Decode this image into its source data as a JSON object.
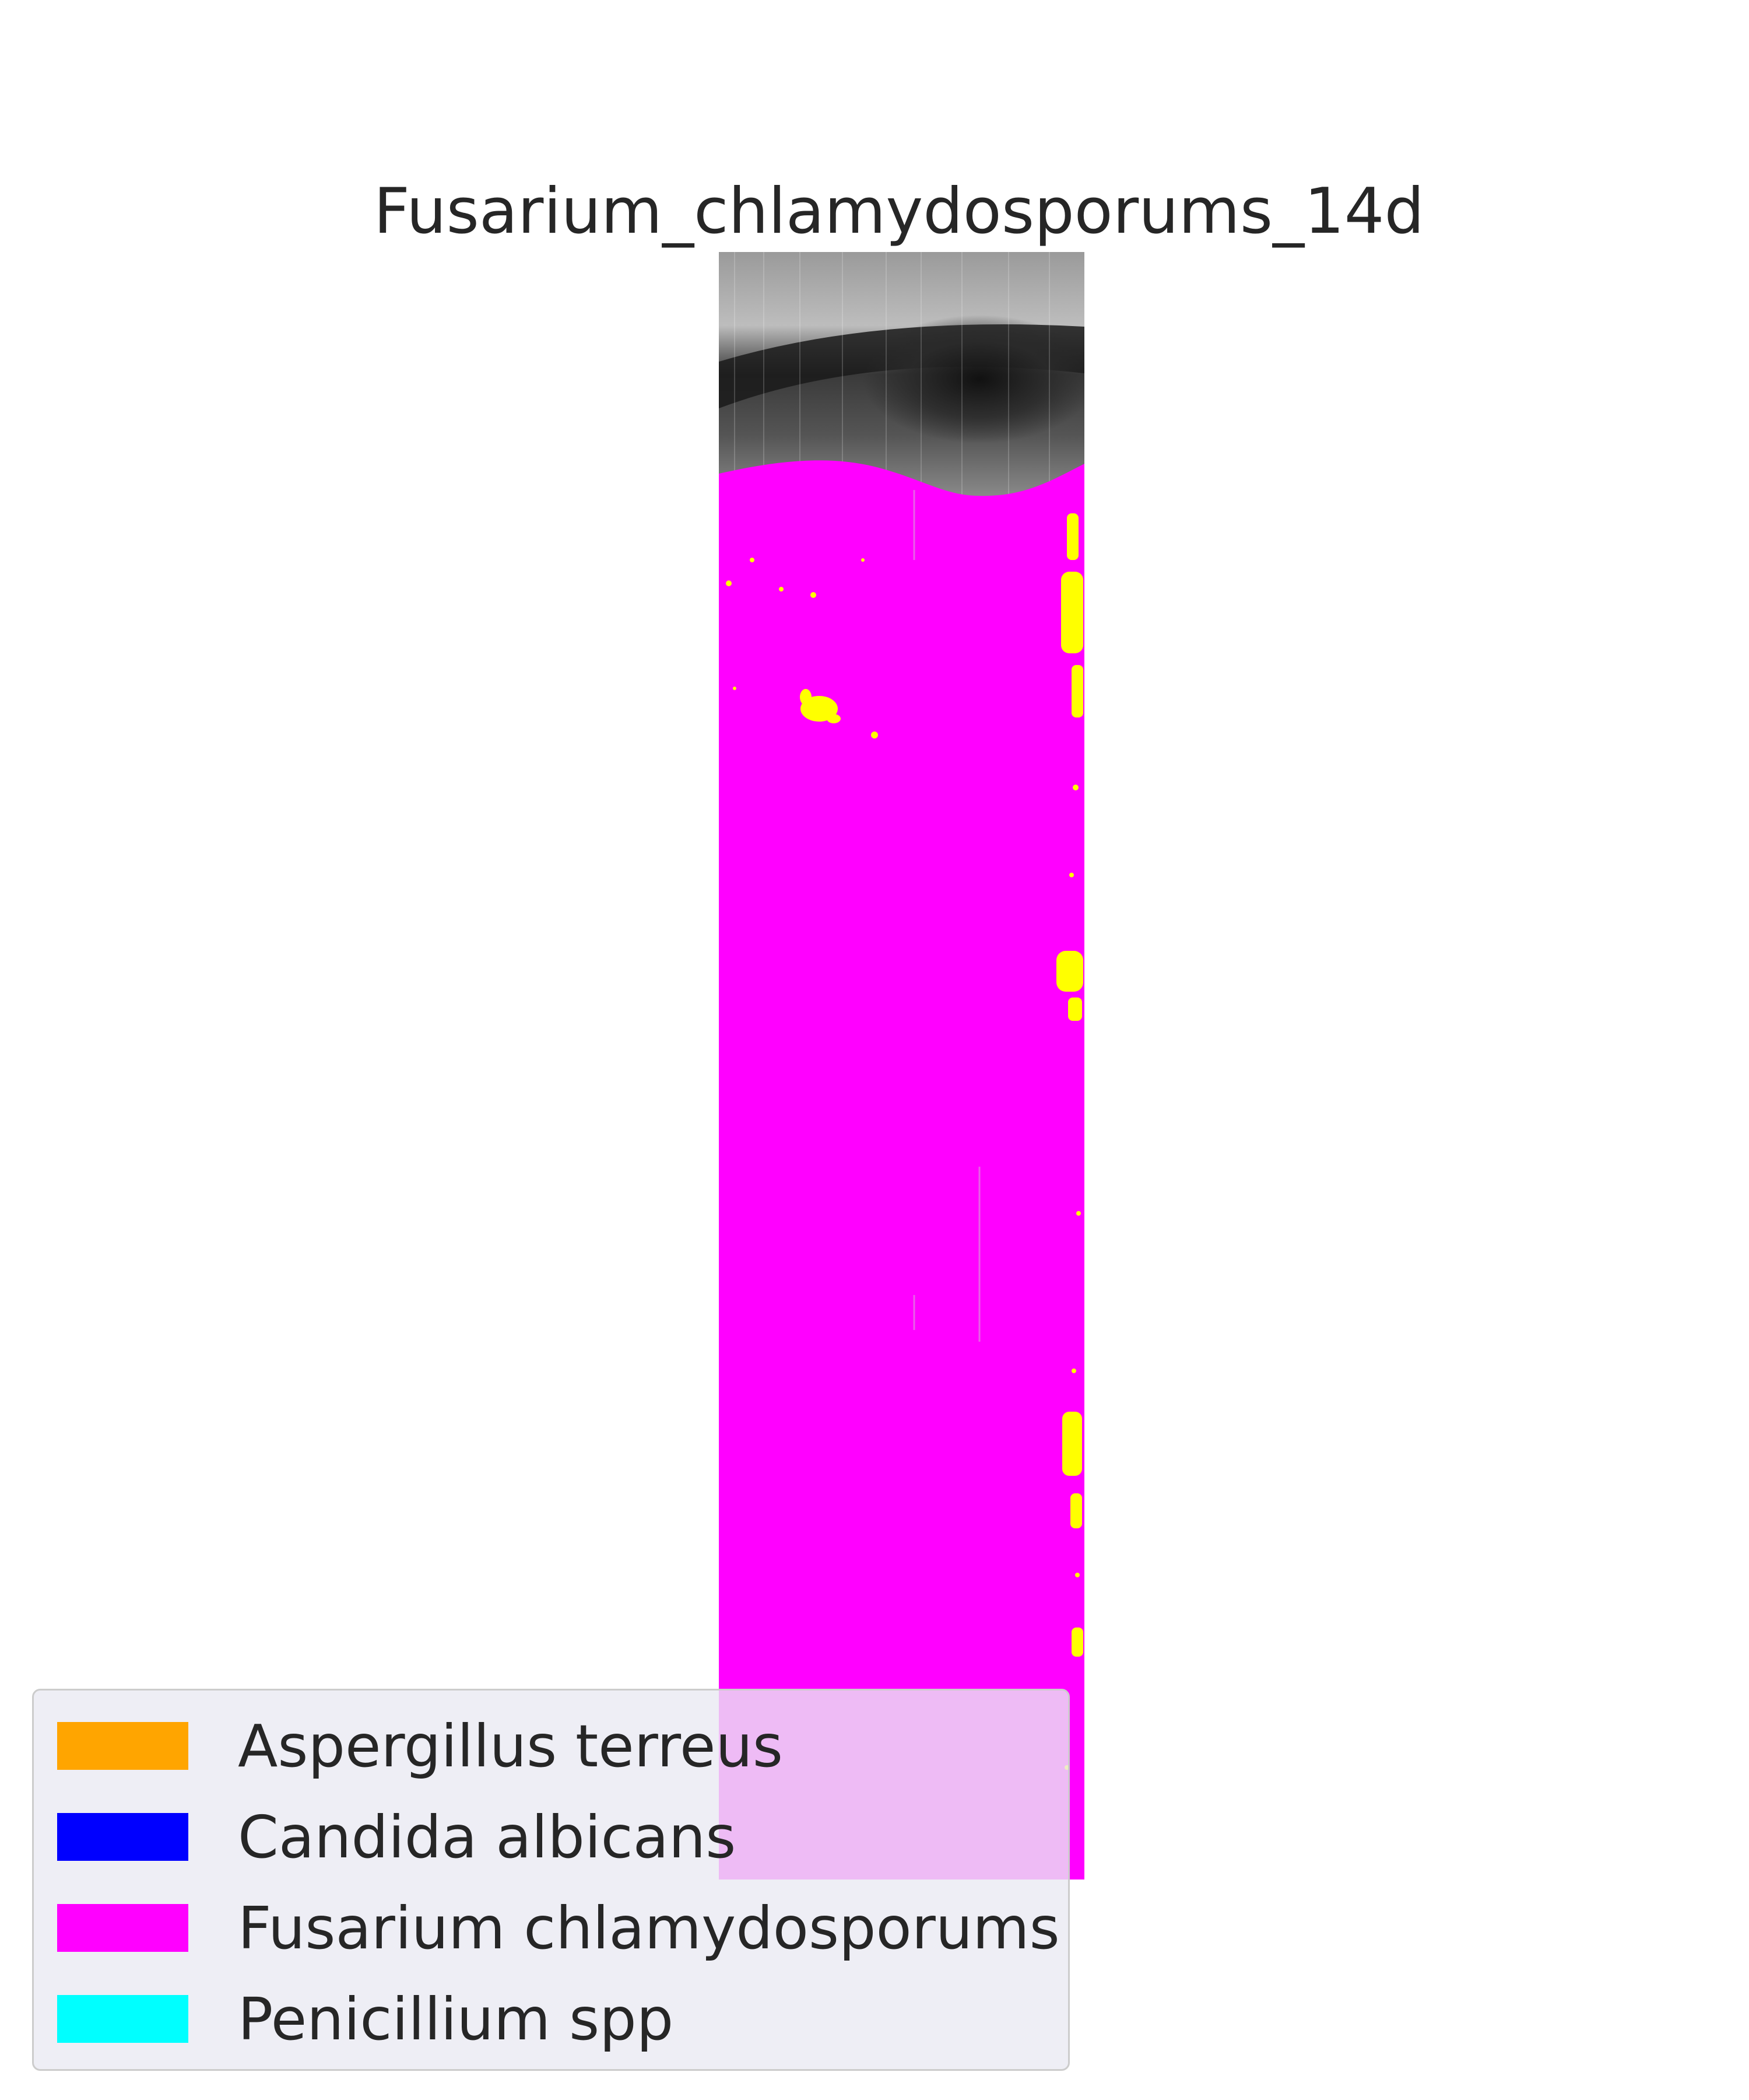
{
  "chart_data": {
    "type": "heatmap",
    "title": "Fusarium_chlamydosporums_14d",
    "xlabel": "",
    "ylabel": "",
    "grid": false,
    "axes_visible": false,
    "background_image": "grayscale sample scan",
    "classification_overlay": {
      "dominant_class": "Fusarium chlamydosporums",
      "secondary_class_color": "#ffff00",
      "secondary_regions": "scattered specks, heaviest along right edge and one cluster near upper left"
    },
    "legend": {
      "placement": "lower-left",
      "entries": [
        {
          "label": "Aspergillus terreus",
          "color": "#ffa500"
        },
        {
          "label": "Candida albicans",
          "color": "#0000ff"
        },
        {
          "label": "Fusarium chlamydosporums",
          "color": "#ff00ff"
        },
        {
          "label": "Penicillium spp",
          "color": "#00ffff"
        }
      ]
    }
  }
}
